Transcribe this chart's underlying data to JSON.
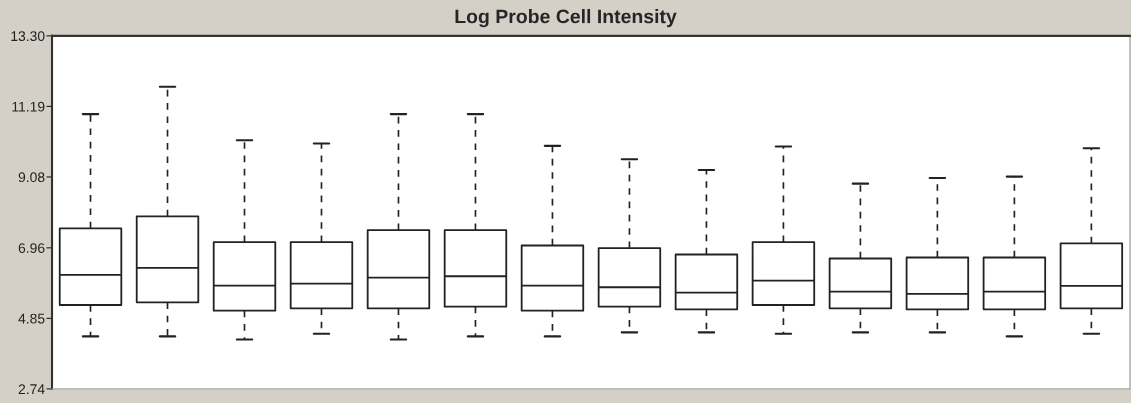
{
  "chart_data": {
    "type": "box",
    "title": "Log Probe Cell Intensity",
    "categories": [
      null,
      null,
      null,
      null,
      null,
      null,
      null,
      null,
      null,
      null,
      null,
      null,
      null,
      null
    ],
    "boxes": [
      {
        "low": 4.31,
        "q1": 5.25,
        "median": 6.15,
        "q3": 7.54,
        "high": 10.96
      },
      {
        "low": 4.31,
        "q1": 5.33,
        "median": 6.36,
        "q3": 7.9,
        "high": 11.78
      },
      {
        "low": 4.22,
        "q1": 5.08,
        "median": 5.83,
        "q3": 7.13,
        "high": 10.18
      },
      {
        "low": 4.39,
        "q1": 5.15,
        "median": 5.89,
        "q3": 7.13,
        "high": 10.08
      },
      {
        "low": 4.22,
        "q1": 5.15,
        "median": 6.07,
        "q3": 7.49,
        "high": 10.96
      },
      {
        "low": 4.31,
        "q1": 5.2,
        "median": 6.11,
        "q3": 7.49,
        "high": 10.96
      },
      {
        "low": 4.31,
        "q1": 5.08,
        "median": 5.83,
        "q3": 7.03,
        "high": 10.01
      },
      {
        "low": 4.43,
        "q1": 5.2,
        "median": 5.78,
        "q3": 6.95,
        "high": 9.61
      },
      {
        "low": 4.43,
        "q1": 5.12,
        "median": 5.62,
        "q3": 6.76,
        "high": 9.29
      },
      {
        "low": 4.39,
        "q1": 5.25,
        "median": 5.98,
        "q3": 7.13,
        "high": 9.99
      },
      {
        "low": 4.43,
        "q1": 5.15,
        "median": 5.65,
        "q3": 6.64,
        "high": 8.88
      },
      {
        "low": 4.43,
        "q1": 5.12,
        "median": 5.58,
        "q3": 6.67,
        "high": 9.05
      },
      {
        "low": 4.31,
        "q1": 5.12,
        "median": 5.65,
        "q3": 6.67,
        "high": 9.09
      },
      {
        "low": 4.39,
        "q1": 5.15,
        "median": 5.82,
        "q3": 7.09,
        "high": 9.94
      }
    ],
    "ylim": [
      2.74,
      13.3
    ],
    "yticks": [
      {
        "value": 2.74,
        "label": "2.74"
      },
      {
        "value": 4.85,
        "label": "4.85"
      },
      {
        "value": 6.96,
        "label": "6.96"
      },
      {
        "value": 9.08,
        "label": "9.08"
      },
      {
        "value": 11.19,
        "label": "11.19"
      },
      {
        "value": 13.3,
        "label": "13.30"
      }
    ],
    "tick_labels": "y",
    "grid": false
  }
}
